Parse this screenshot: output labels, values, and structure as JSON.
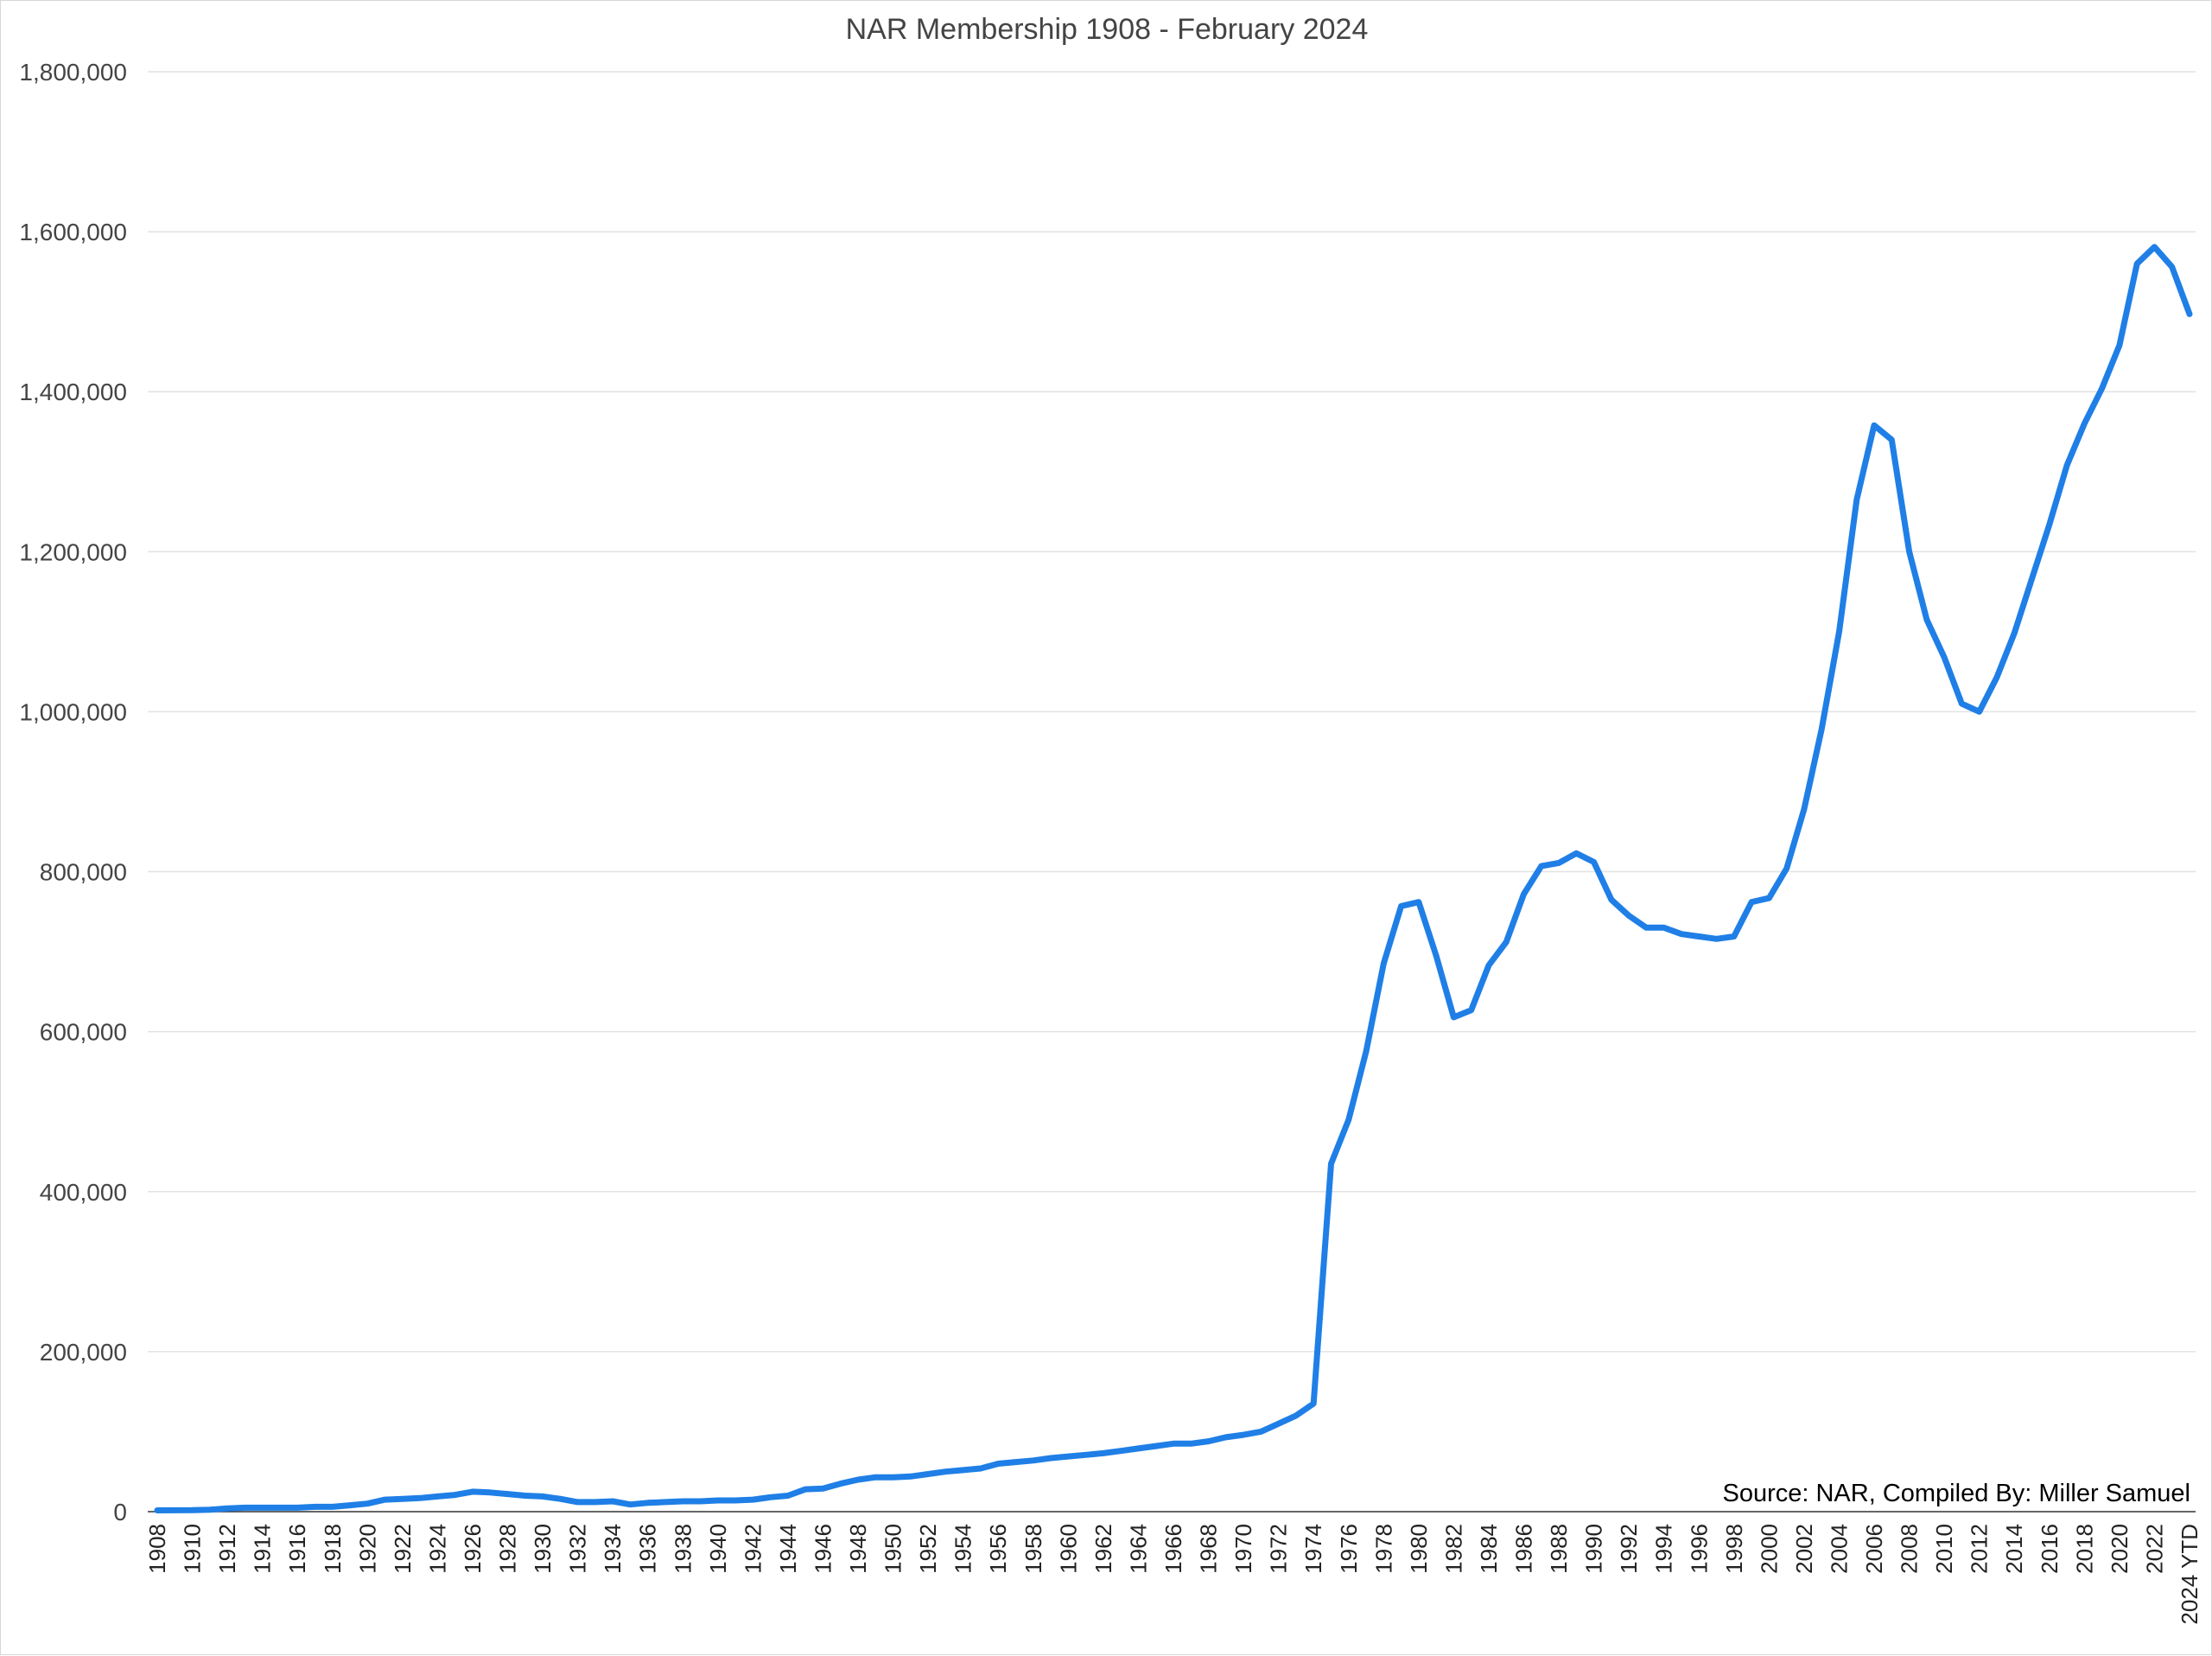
{
  "chart_data": {
    "type": "line",
    "title": "NAR Membership 1908 - February 2024",
    "annotation": "Source: NAR, Compiled By: Miller Samuel",
    "xlabel": "",
    "ylabel": "",
    "ylim": [
      0,
      1800000
    ],
    "y_ticks": [
      0,
      200000,
      400000,
      600000,
      800000,
      1000000,
      1200000,
      1400000,
      1600000,
      1800000
    ],
    "y_tick_labels": [
      "0",
      "200,000",
      "400,000",
      "600,000",
      "800,000",
      "1,000,000",
      "1,200,000",
      "1,400,000",
      "1,600,000",
      "1,800,000"
    ],
    "grid": true,
    "legend": "none",
    "line_color": "#1f7fe6",
    "x_tick_labels": [
      "1908",
      "1910",
      "1912",
      "1914",
      "1916",
      "1918",
      "1920",
      "1922",
      "1924",
      "1926",
      "1928",
      "1930",
      "1932",
      "1934",
      "1936",
      "1938",
      "1940",
      "1942",
      "1944",
      "1946",
      "1948",
      "1950",
      "1952",
      "1954",
      "1956",
      "1958",
      "1960",
      "1962",
      "1964",
      "1966",
      "1968",
      "1970",
      "1972",
      "1974",
      "1976",
      "1978",
      "1980",
      "1982",
      "1984",
      "1986",
      "1988",
      "1990",
      "1992",
      "1994",
      "1996",
      "1998",
      "2000",
      "2002",
      "2004",
      "2006",
      "2008",
      "2010",
      "2012",
      "2014",
      "2016",
      "2018",
      "2020",
      "2022",
      "2024 YTD"
    ],
    "x": [
      "1908",
      "1909",
      "1910",
      "1911",
      "1912",
      "1913",
      "1914",
      "1915",
      "1916",
      "1917",
      "1918",
      "1919",
      "1920",
      "1921",
      "1922",
      "1923",
      "1924",
      "1925",
      "1926",
      "1927",
      "1928",
      "1929",
      "1930",
      "1931",
      "1932",
      "1933",
      "1934",
      "1935",
      "1936",
      "1937",
      "1938",
      "1939",
      "1940",
      "1941",
      "1942",
      "1943",
      "1944",
      "1945",
      "1946",
      "1947",
      "1948",
      "1949",
      "1950",
      "1951",
      "1952",
      "1953",
      "1954",
      "1955",
      "1956",
      "1957",
      "1958",
      "1959",
      "1960",
      "1961",
      "1962",
      "1963",
      "1964",
      "1965",
      "1966",
      "1967",
      "1968",
      "1969",
      "1970",
      "1971",
      "1972",
      "1973",
      "1974",
      "1975",
      "1976",
      "1977",
      "1978",
      "1979",
      "1980",
      "1981",
      "1982",
      "1983",
      "1984",
      "1985",
      "1986",
      "1987",
      "1988",
      "1989",
      "1990",
      "1991",
      "1992",
      "1993",
      "1994",
      "1995",
      "1996",
      "1997",
      "1998",
      "1999",
      "2000",
      "2001",
      "2002",
      "2003",
      "2004",
      "2005",
      "2006",
      "2007",
      "2008",
      "2009",
      "2010",
      "2011",
      "2012",
      "2013",
      "2014",
      "2015",
      "2016",
      "2017",
      "2018",
      "2019",
      "2020",
      "2021",
      "2022",
      "2023",
      "2024 YTD"
    ],
    "series": [
      {
        "values": [
          1600,
          1700,
          1800,
          2500,
          4000,
          5000,
          5000,
          5000,
          5000,
          6000,
          6000,
          8000,
          10000,
          15000,
          16000,
          17000,
          19000,
          21000,
          25000,
          24000,
          22000,
          20000,
          19000,
          16000,
          12000,
          12000,
          13000,
          9000,
          11000,
          12000,
          13000,
          13000,
          14000,
          14000,
          15000,
          18000,
          20000,
          28000,
          29000,
          35000,
          40000,
          43000,
          43000,
          44000,
          47000,
          50000,
          52000,
          54000,
          60000,
          62000,
          64000,
          67000,
          69000,
          71000,
          73000,
          76000,
          79000,
          82000,
          85000,
          85000,
          88000,
          93000,
          96000,
          100000,
          110000,
          120000,
          135000,
          435000,
          490000,
          575000,
          685000,
          757000,
          762000,
          695000,
          618000,
          627000,
          683000,
          712000,
          772000,
          807000,
          811000,
          823000,
          812000,
          765000,
          745000,
          730000,
          730000,
          722000,
          719000,
          716000,
          719000,
          762000,
          767000,
          804000,
          878000,
          978000,
          1100000,
          1265000,
          1358000,
          1340000,
          1200000,
          1115000,
          1068000,
          1010000,
          1000000,
          1043000,
          1098000,
          1166000,
          1234000,
          1308000,
          1360000,
          1404000,
          1458000,
          1560000,
          1581000,
          1556000,
          1497000
        ]
      }
    ]
  }
}
